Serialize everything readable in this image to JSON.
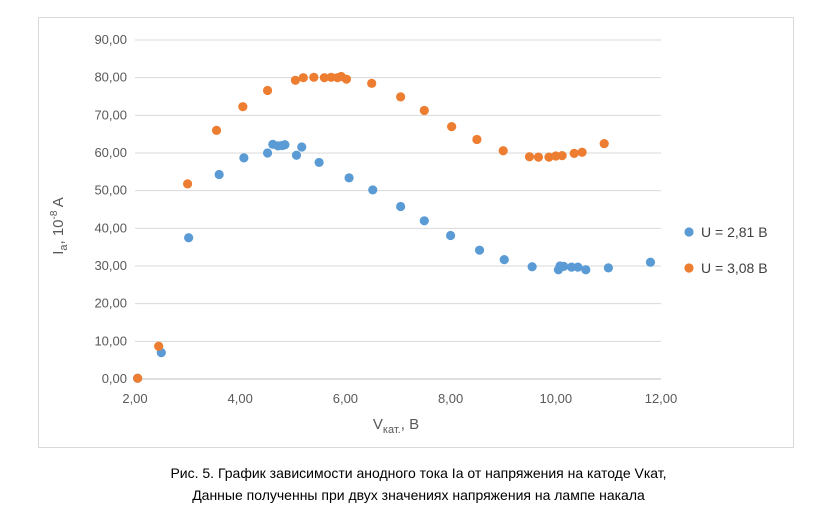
{
  "caption": {
    "line1": "Рис. 5. График зависимости анодного тока Ia от напряжения на катоде Vкат,",
    "line2": "Данные полученны при двух значениях напряжения на лампе накала"
  },
  "chart_data": {
    "type": "scatter",
    "title": "",
    "xlabel": {
      "main": "V",
      "sub": "кат.",
      "suffix": ", В"
    },
    "ylabel": {
      "main": "I",
      "sub": "a",
      "mid": ", 10",
      "sup": "-8",
      "suffix": " A"
    },
    "xlim": [
      2,
      12
    ],
    "ylim": [
      0,
      90
    ],
    "x_ticks": [
      2,
      4,
      6,
      8,
      10,
      12
    ],
    "x_tick_labels": [
      "2,00",
      "4,00",
      "6,00",
      "8,00",
      "10,00",
      "12,00"
    ],
    "y_ticks": [
      0,
      10,
      20,
      30,
      40,
      50,
      60,
      70,
      80,
      90
    ],
    "y_tick_labels": [
      "0,00",
      "10,00",
      "20,00",
      "30,00",
      "40,00",
      "50,00",
      "60,00",
      "70,00",
      "80,00",
      "90,00"
    ],
    "grid": "horizontal",
    "legend_position": "right",
    "series": [
      {
        "name": "U = 2,81 В",
        "color": "#5b9bd5",
        "points": [
          [
            2.05,
            0.2
          ],
          [
            2.5,
            7.0
          ],
          [
            3.02,
            37.5
          ],
          [
            3.6,
            54.3
          ],
          [
            4.07,
            58.7
          ],
          [
            4.52,
            60.0
          ],
          [
            4.62,
            62.3
          ],
          [
            4.72,
            61.9
          ],
          [
            4.8,
            62.0
          ],
          [
            4.85,
            62.2
          ],
          [
            5.07,
            59.4
          ],
          [
            5.17,
            61.6
          ],
          [
            5.5,
            57.5
          ],
          [
            6.07,
            53.4
          ],
          [
            6.52,
            50.2
          ],
          [
            7.05,
            45.8
          ],
          [
            7.5,
            42.0
          ],
          [
            8.0,
            38.1
          ],
          [
            8.55,
            34.2
          ],
          [
            9.02,
            31.7
          ],
          [
            9.55,
            29.8
          ],
          [
            10.05,
            29.0
          ],
          [
            10.08,
            30.0
          ],
          [
            10.15,
            29.9
          ],
          [
            10.3,
            29.7
          ],
          [
            10.42,
            29.7
          ],
          [
            10.57,
            29.0
          ],
          [
            11.0,
            29.5
          ],
          [
            11.8,
            31.0
          ]
        ]
      },
      {
        "name": "U = 3,08 В",
        "color": "#ed7d31",
        "points": [
          [
            2.05,
            0.2
          ],
          [
            2.45,
            8.7
          ],
          [
            3.0,
            51.8
          ],
          [
            3.55,
            66.0
          ],
          [
            4.05,
            72.3
          ],
          [
            4.52,
            76.6
          ],
          [
            5.05,
            79.3
          ],
          [
            5.2,
            80.0
          ],
          [
            5.4,
            80.1
          ],
          [
            5.6,
            80.0
          ],
          [
            5.73,
            80.1
          ],
          [
            5.85,
            80.0
          ],
          [
            5.92,
            80.3
          ],
          [
            6.02,
            79.6
          ],
          [
            6.5,
            78.5
          ],
          [
            7.05,
            74.9
          ],
          [
            7.5,
            71.3
          ],
          [
            8.02,
            67.0
          ],
          [
            8.5,
            63.6
          ],
          [
            9.0,
            60.6
          ],
          [
            9.5,
            59.0
          ],
          [
            9.67,
            58.9
          ],
          [
            9.87,
            58.9
          ],
          [
            10.0,
            59.2
          ],
          [
            10.12,
            59.3
          ],
          [
            10.35,
            59.9
          ],
          [
            10.5,
            60.2
          ],
          [
            10.92,
            62.5
          ]
        ]
      }
    ]
  }
}
